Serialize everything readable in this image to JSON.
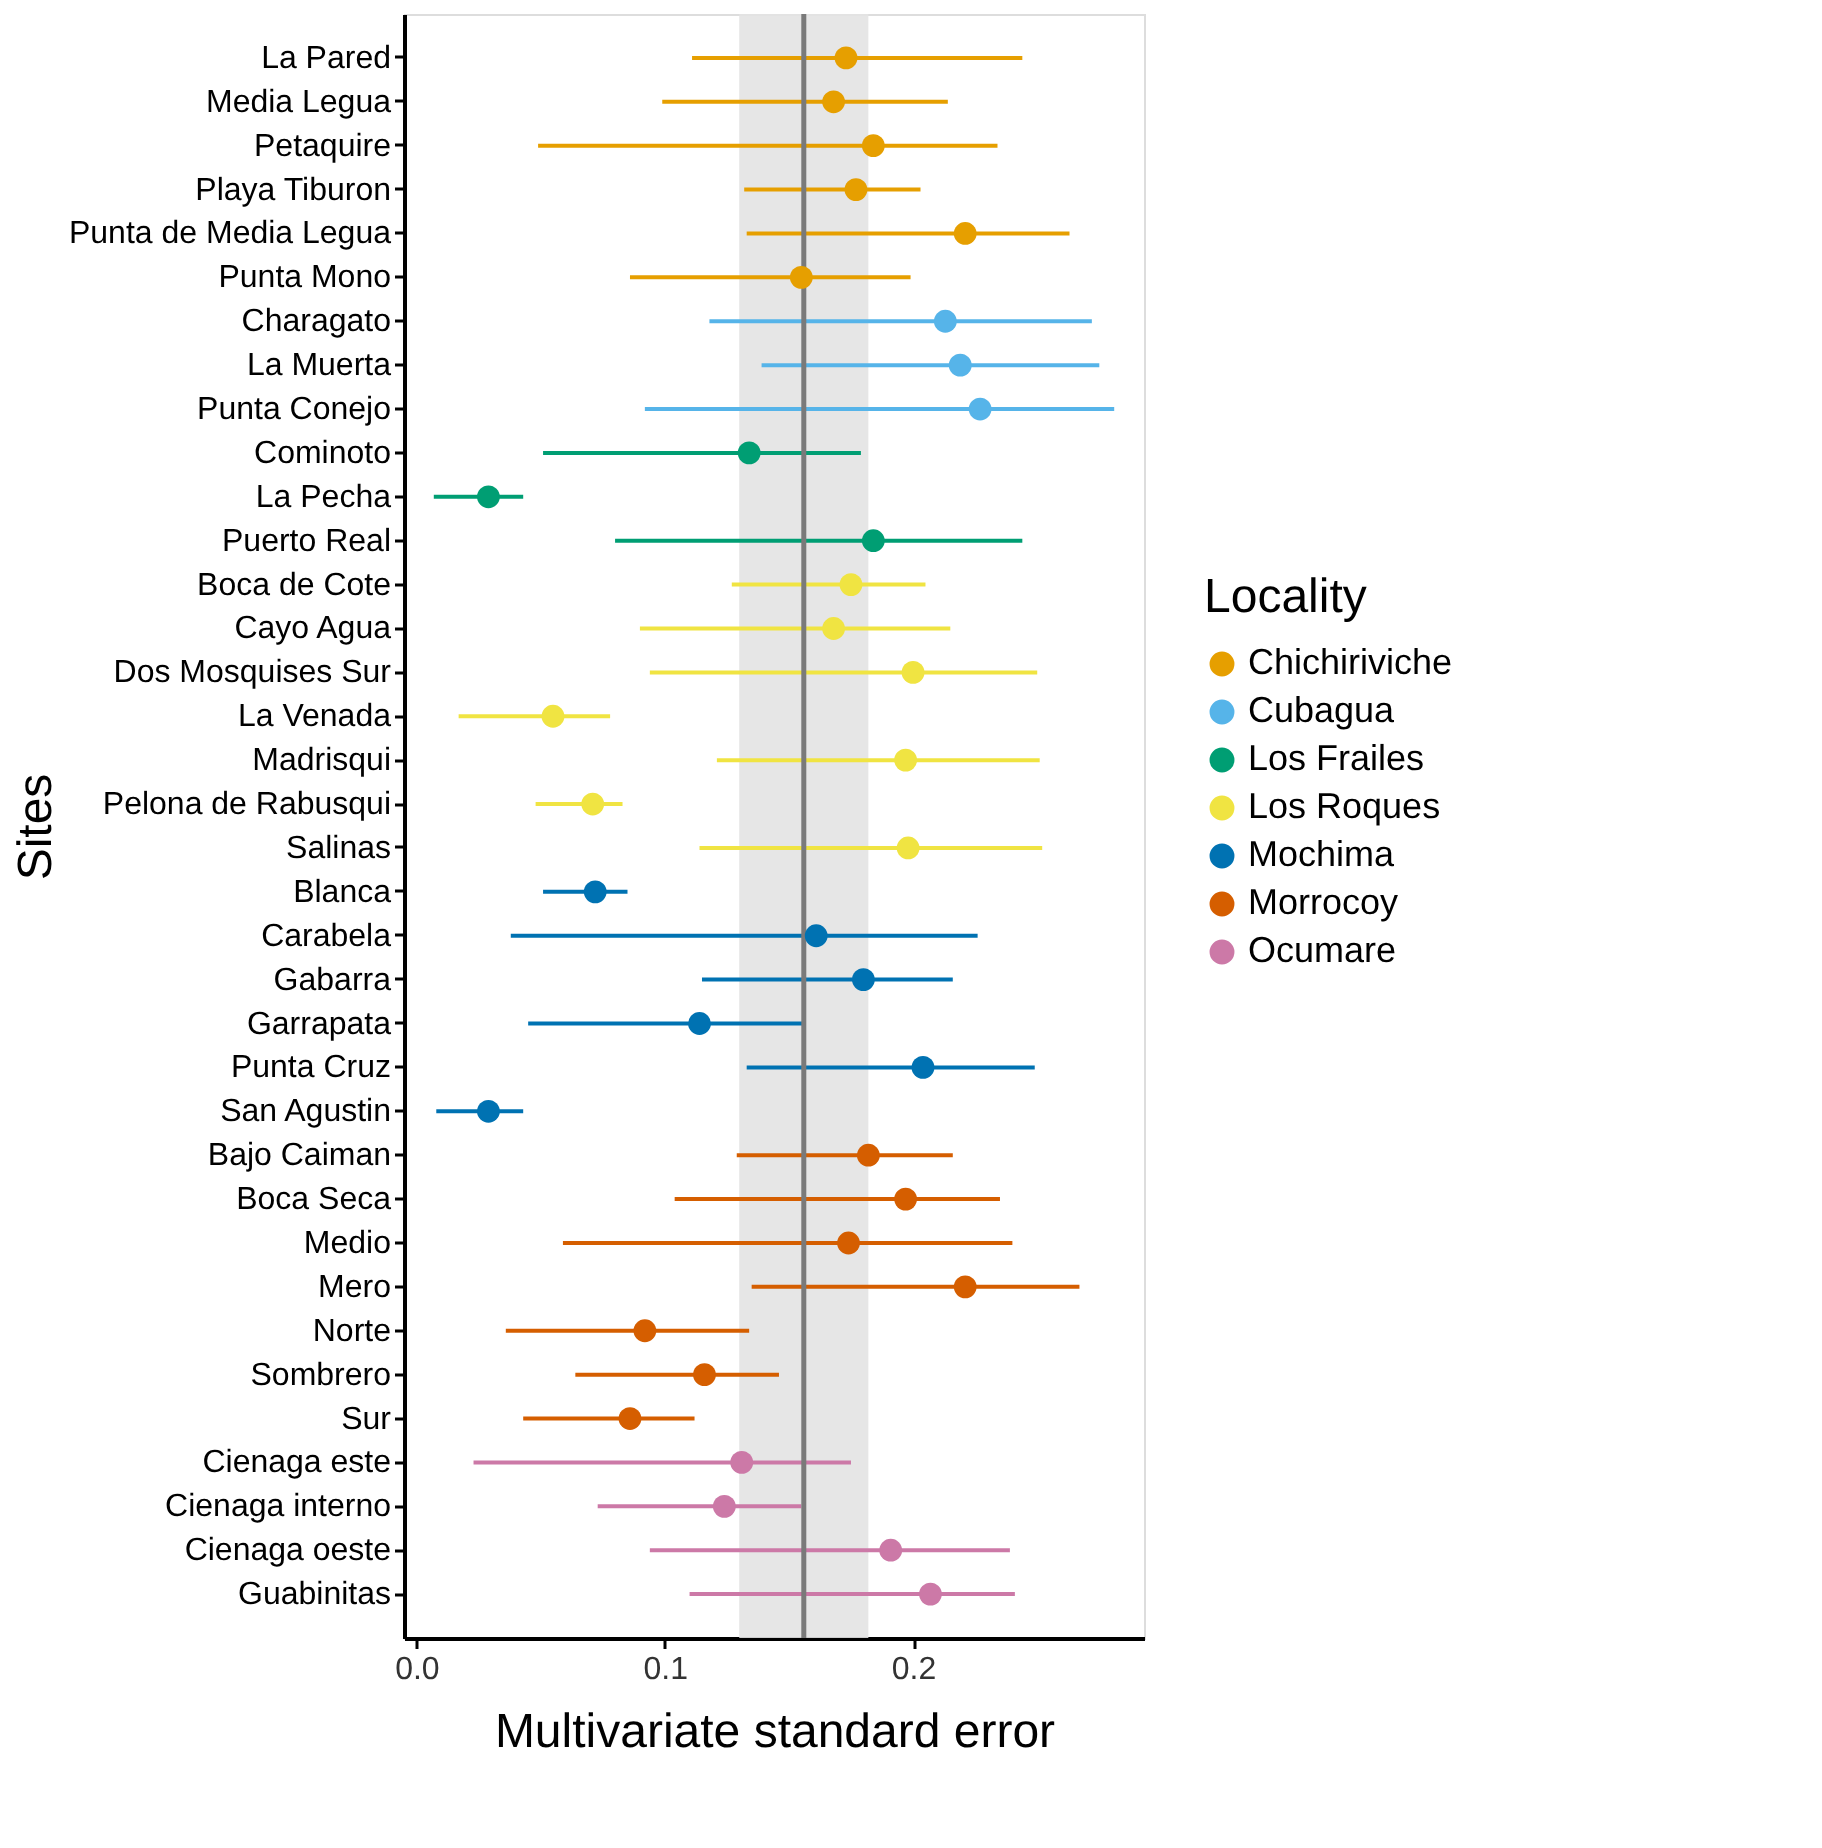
{
  "chart_data": {
    "type": "scatter",
    "orientation": "horizontal",
    "xlabel": "Multivariate standard error",
    "ylabel": "Sites",
    "legend_title": "Locality",
    "legend": "right",
    "grid": false,
    "marker": "circle",
    "categories": [
      "La Pared",
      "Media Legua",
      "Petaquire",
      "Playa Tiburon",
      "Punta de Media Legua",
      "Punta Mono",
      "Charagato",
      "La Muerta",
      "Punta Conejo",
      "Cominoto",
      "La Pecha",
      "Puerto Real",
      "Boca de Cote",
      "Cayo Agua",
      "Dos Mosquises Sur",
      "La Venada",
      "Madrisqui",
      "Pelona de Rabusqui",
      "Salinas",
      "Blanca",
      "Carabela",
      "Gabarra",
      "Garrapata",
      "Punta Cruz",
      "San Agustin",
      "Bajo Caiman",
      "Boca Seca",
      "Medio",
      "Mero",
      "Norte",
      "Sombrero",
      "Sur",
      "Cienaga este",
      "Cienaga interno",
      "Cienaga oeste",
      "Guabinitas"
    ],
    "xlim": [
      -0.005,
      0.293
    ],
    "xticks": [
      {
        "value": 0,
        "label": "0.0"
      },
      0.1,
      0.2
    ],
    "bands": [
      {
        "axis": "x",
        "from": 0.13,
        "to": 0.182,
        "color": "#e3e3e3"
      }
    ],
    "ref_lines": [
      {
        "axis": "x",
        "value": 0.156,
        "color": "#7a7a7a"
      }
    ],
    "series": [
      {
        "name": "Chichiriviche",
        "color": "#e69f00",
        "values": [
          0.173,
          0.168,
          0.184,
          0.177,
          0.221,
          0.155,
          null,
          null,
          null,
          null,
          null,
          null,
          null,
          null,
          null,
          null,
          null,
          null,
          null,
          null,
          null,
          null,
          null,
          null,
          null,
          null,
          null,
          null,
          null,
          null,
          null,
          null,
          null,
          null,
          null,
          null
        ],
        "errors": [
          [
            0.111,
            0.244
          ],
          [
            0.099,
            0.214
          ],
          [
            0.049,
            0.234
          ],
          [
            0.132,
            0.203
          ],
          [
            0.133,
            0.263
          ],
          [
            0.086,
            0.199
          ],
          null,
          null,
          null,
          null,
          null,
          null,
          null,
          null,
          null,
          null,
          null,
          null,
          null,
          null,
          null,
          null,
          null,
          null,
          null,
          null,
          null,
          null,
          null,
          null,
          null,
          null,
          null,
          null,
          null,
          null
        ]
      },
      {
        "name": "Cubagua",
        "color": "#56b4e9",
        "values": [
          null,
          null,
          null,
          null,
          null,
          null,
          0.213,
          0.219,
          0.227,
          null,
          null,
          null,
          null,
          null,
          null,
          null,
          null,
          null,
          null,
          null,
          null,
          null,
          null,
          null,
          null,
          null,
          null,
          null,
          null,
          null,
          null,
          null,
          null,
          null,
          null,
          null
        ],
        "errors": [
          null,
          null,
          null,
          null,
          null,
          null,
          [
            0.118,
            0.272
          ],
          [
            0.139,
            0.275
          ],
          [
            0.092,
            0.281
          ],
          null,
          null,
          null,
          null,
          null,
          null,
          null,
          null,
          null,
          null,
          null,
          null,
          null,
          null,
          null,
          null,
          null,
          null,
          null,
          null,
          null,
          null,
          null,
          null,
          null,
          null,
          null
        ]
      },
      {
        "name": "Los Frailes",
        "color": "#009e73",
        "values": [
          null,
          null,
          null,
          null,
          null,
          null,
          null,
          null,
          null,
          0.134,
          0.029,
          0.184,
          null,
          null,
          null,
          null,
          null,
          null,
          null,
          null,
          null,
          null,
          null,
          null,
          null,
          null,
          null,
          null,
          null,
          null,
          null,
          null,
          null,
          null,
          null,
          null
        ],
        "errors": [
          null,
          null,
          null,
          null,
          null,
          null,
          null,
          null,
          null,
          [
            0.051,
            0.179
          ],
          [
            0.007,
            0.043
          ],
          [
            0.08,
            0.244
          ],
          null,
          null,
          null,
          null,
          null,
          null,
          null,
          null,
          null,
          null,
          null,
          null,
          null,
          null,
          null,
          null,
          null,
          null,
          null,
          null,
          null,
          null,
          null,
          null
        ]
      },
      {
        "name": "Los Roques",
        "color": "#f0e442",
        "values": [
          null,
          null,
          null,
          null,
          null,
          null,
          null,
          null,
          null,
          null,
          null,
          null,
          0.175,
          0.168,
          0.2,
          0.055,
          0.197,
          0.071,
          0.198,
          null,
          null,
          null,
          null,
          null,
          null,
          null,
          null,
          null,
          null,
          null,
          null,
          null,
          null,
          null,
          null,
          null
        ],
        "errors": [
          null,
          null,
          null,
          null,
          null,
          null,
          null,
          null,
          null,
          null,
          null,
          null,
          [
            0.127,
            0.205
          ],
          [
            0.09,
            0.215
          ],
          [
            0.094,
            0.25
          ],
          [
            0.017,
            0.078
          ],
          [
            0.121,
            0.251
          ],
          [
            0.048,
            0.083
          ],
          [
            0.114,
            0.252
          ],
          null,
          null,
          null,
          null,
          null,
          null,
          null,
          null,
          null,
          null,
          null,
          null,
          null,
          null,
          null,
          null,
          null
        ]
      },
      {
        "name": "Mochima",
        "color": "#0072b2",
        "values": [
          null,
          null,
          null,
          null,
          null,
          null,
          null,
          null,
          null,
          null,
          null,
          null,
          null,
          null,
          null,
          null,
          null,
          null,
          null,
          0.072,
          0.161,
          0.18,
          0.114,
          0.204,
          0.029,
          null,
          null,
          null,
          null,
          null,
          null,
          null,
          null,
          null,
          null,
          null
        ],
        "errors": [
          null,
          null,
          null,
          null,
          null,
          null,
          null,
          null,
          null,
          null,
          null,
          null,
          null,
          null,
          null,
          null,
          null,
          null,
          null,
          [
            0.051,
            0.085
          ],
          [
            0.038,
            0.226
          ],
          [
            0.115,
            0.216
          ],
          [
            0.045,
            0.156
          ],
          [
            0.133,
            0.249
          ],
          [
            0.008,
            0.043
          ],
          null,
          null,
          null,
          null,
          null,
          null,
          null,
          null,
          null,
          null,
          null
        ]
      },
      {
        "name": "Morrocoy",
        "color": "#d55e00",
        "values": [
          null,
          null,
          null,
          null,
          null,
          null,
          null,
          null,
          null,
          null,
          null,
          null,
          null,
          null,
          null,
          null,
          null,
          null,
          null,
          null,
          null,
          null,
          null,
          null,
          null,
          0.182,
          0.197,
          0.174,
          0.221,
          0.092,
          0.116,
          0.086,
          null,
          null,
          null,
          null
        ],
        "errors": [
          null,
          null,
          null,
          null,
          null,
          null,
          null,
          null,
          null,
          null,
          null,
          null,
          null,
          null,
          null,
          null,
          null,
          null,
          null,
          null,
          null,
          null,
          null,
          null,
          null,
          [
            0.129,
            0.216
          ],
          [
            0.104,
            0.235
          ],
          [
            0.059,
            0.24
          ],
          [
            0.135,
            0.267
          ],
          [
            0.036,
            0.134
          ],
          [
            0.064,
            0.146
          ],
          [
            0.043,
            0.112
          ],
          null,
          null,
          null,
          null
        ]
      },
      {
        "name": "Ocumare",
        "color": "#cc79a7",
        "values": [
          null,
          null,
          null,
          null,
          null,
          null,
          null,
          null,
          null,
          null,
          null,
          null,
          null,
          null,
          null,
          null,
          null,
          null,
          null,
          null,
          null,
          null,
          null,
          null,
          null,
          null,
          null,
          null,
          null,
          null,
          null,
          null,
          0.131,
          0.124,
          0.191,
          0.207
        ],
        "errors": [
          null,
          null,
          null,
          null,
          null,
          null,
          null,
          null,
          null,
          null,
          null,
          null,
          null,
          null,
          null,
          null,
          null,
          null,
          null,
          null,
          null,
          null,
          null,
          null,
          null,
          null,
          null,
          null,
          null,
          null,
          null,
          null,
          [
            0.023,
            0.175
          ],
          [
            0.073,
            0.155
          ],
          [
            0.094,
            0.239
          ],
          [
            0.11,
            0.241
          ]
        ]
      }
    ]
  }
}
